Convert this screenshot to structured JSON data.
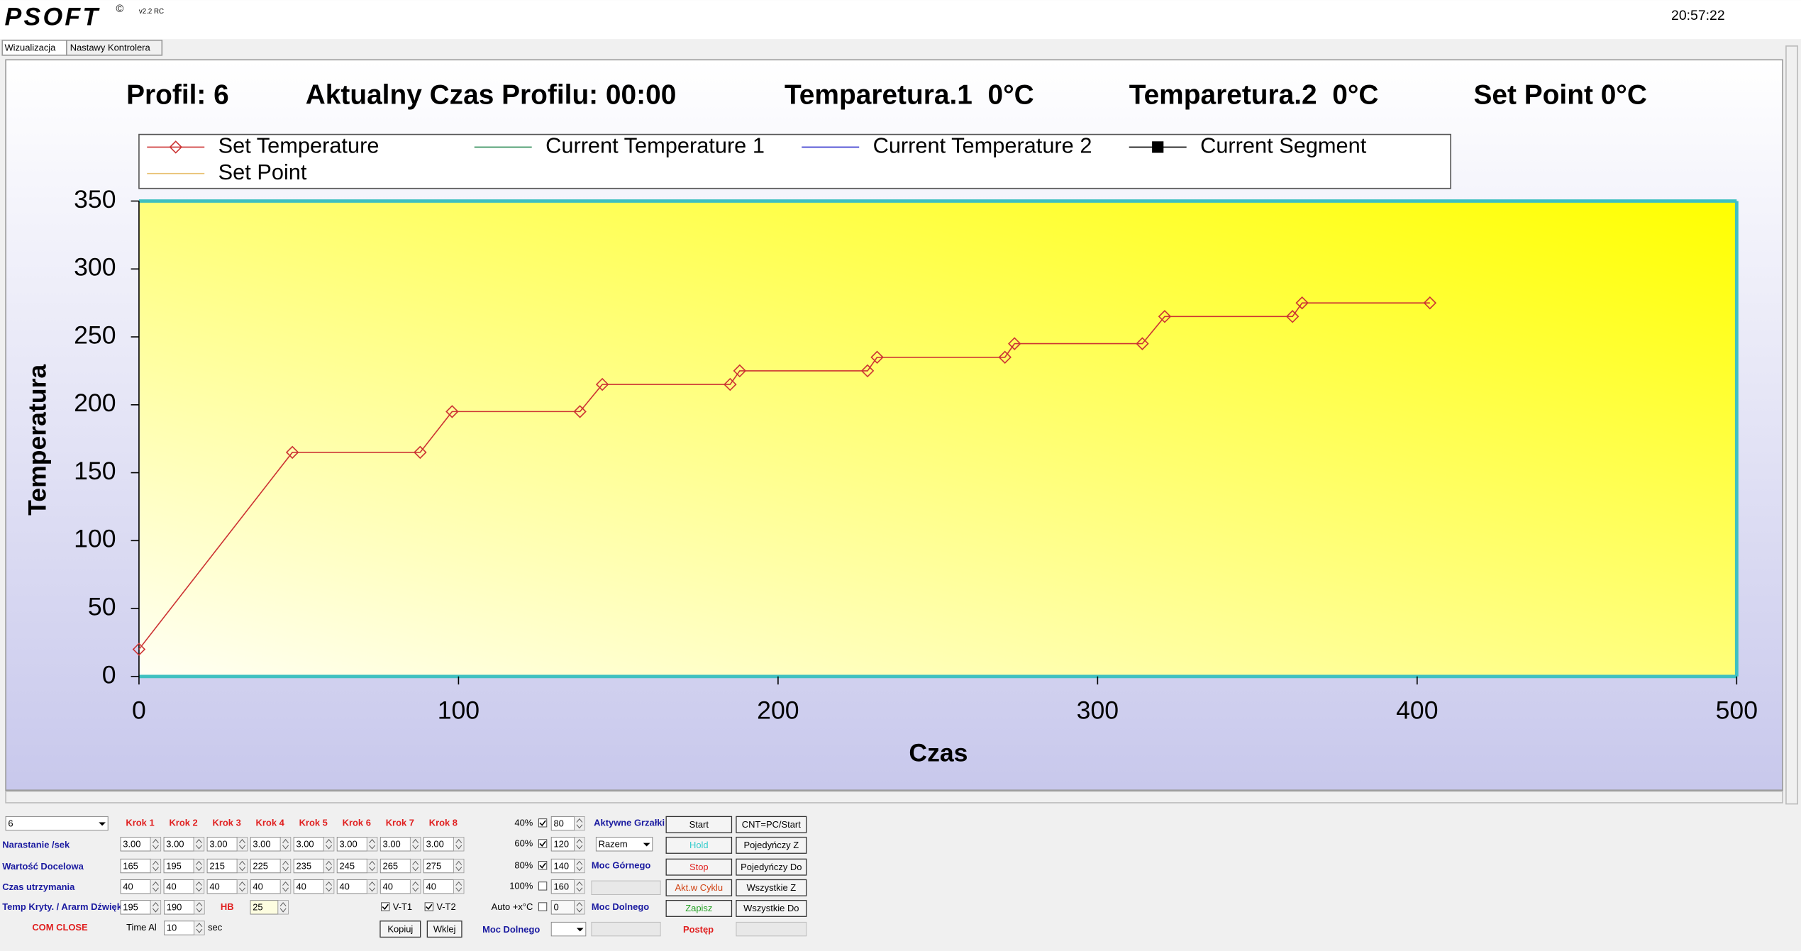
{
  "header": {
    "logo": "PSOFT",
    "copyright": "©",
    "version": "v2.2 RC",
    "clock": "20:57:22",
    "tabs": [
      "Wizualizacja",
      "Nastawy Kontrolera"
    ]
  },
  "status": {
    "profile": "Profil: 6",
    "time": "Aktualny Czas Profilu: 00:00",
    "temp1": "Temparetura.1  0°C",
    "temp2": "Temparetura.2  0°C",
    "set_point": "Set Point 0°C"
  },
  "chart_data": {
    "type": "line",
    "x_label": "Czas",
    "y_label": "Temperatura",
    "xlim": [
      0,
      500
    ],
    "ylim": [
      0,
      350
    ],
    "xticks": [
      0,
      100,
      200,
      300,
      400,
      500
    ],
    "yticks": [
      0,
      50,
      100,
      150,
      200,
      250,
      300,
      350
    ],
    "legend": "top",
    "series": [
      {
        "name": "Set Temperature",
        "color": "#cc3333",
        "marker": "diamond",
        "x": [
          0,
          48,
          88,
          98,
          138,
          145,
          185,
          188,
          228,
          231,
          271,
          274,
          314,
          321,
          361,
          364,
          404
        ],
        "values": [
          20,
          165,
          165,
          195,
          195,
          215,
          215,
          225,
          225,
          235,
          235,
          245,
          245,
          265,
          265,
          275,
          275
        ]
      },
      {
        "name": "Current Temperature 1",
        "color": "#2e8b57"
      },
      {
        "name": "Current Temperature 2",
        "color": "#3333cc"
      },
      {
        "name": "Current Segment",
        "color": "#000000",
        "marker": "square"
      },
      {
        "name": "Set Point",
        "color": "#e8c070"
      }
    ]
  },
  "controls": {
    "profile_select": "6",
    "steps": [
      "Krok 1",
      "Krok 2",
      "Krok 3",
      "Krok 4",
      "Krok 5",
      "Krok 6",
      "Krok 7",
      "Krok 8"
    ],
    "rows": [
      {
        "label": "Narastanie /sek",
        "values": [
          "3.00",
          "3.00",
          "3.00",
          "3.00",
          "3.00",
          "3.00",
          "3.00",
          "3.00"
        ]
      },
      {
        "label": "Wartość Docelowa",
        "values": [
          "165",
          "195",
          "215",
          "225",
          "235",
          "245",
          "265",
          "275"
        ]
      },
      {
        "label": "Czas utrzymania",
        "values": [
          "40",
          "40",
          "40",
          "40",
          "40",
          "40",
          "40",
          "40"
        ]
      }
    ],
    "alarm": {
      "label": "Temp Kryty. / Ararm Dźwięk",
      "values": [
        "195",
        "190"
      ],
      "hb_label": "HB",
      "hb_value": "25"
    },
    "com": "COM CLOSE",
    "time_alarm": {
      "label": "Time Al",
      "value": "10",
      "unit": "sec"
    },
    "sensors": [
      {
        "label": "V-T1",
        "checked": true
      },
      {
        "label": "V-T2",
        "checked": true
      }
    ],
    "clipboard": [
      "Kopiuj",
      "Wklej"
    ],
    "power": [
      {
        "label": "40%",
        "checked": true,
        "value": "80"
      },
      {
        "label": "60%",
        "checked": true,
        "value": "120"
      },
      {
        "label": "80%",
        "checked": true,
        "value": "140"
      },
      {
        "label": "100%",
        "checked": false,
        "value": "160"
      },
      {
        "label": "Auto +x°C",
        "checked": false,
        "value": "0"
      }
    ],
    "heaters": {
      "label": "Aktywne Grzałki",
      "mode": "Razem"
    },
    "upper_power": "Moc Górnego",
    "lower_power": "Moc Dolnego",
    "lower_power_select": "Moc Dolnego",
    "actions": [
      {
        "label": "Start",
        "color": "#000000"
      },
      {
        "label": "Hold",
        "color": "#33cccc"
      },
      {
        "label": "Stop",
        "color": "#e02020"
      },
      {
        "label": "Akt.w Cyklu",
        "color": "#d04010"
      },
      {
        "label": "Zapisz",
        "color": "#22a022"
      }
    ],
    "progress": "Postęp",
    "transfer": [
      "CNT=PC/Start",
      "Pojedyńczy Z",
      "Pojedyńczy Do",
      "Wszystkie Z",
      "Wszystkie Do"
    ]
  }
}
